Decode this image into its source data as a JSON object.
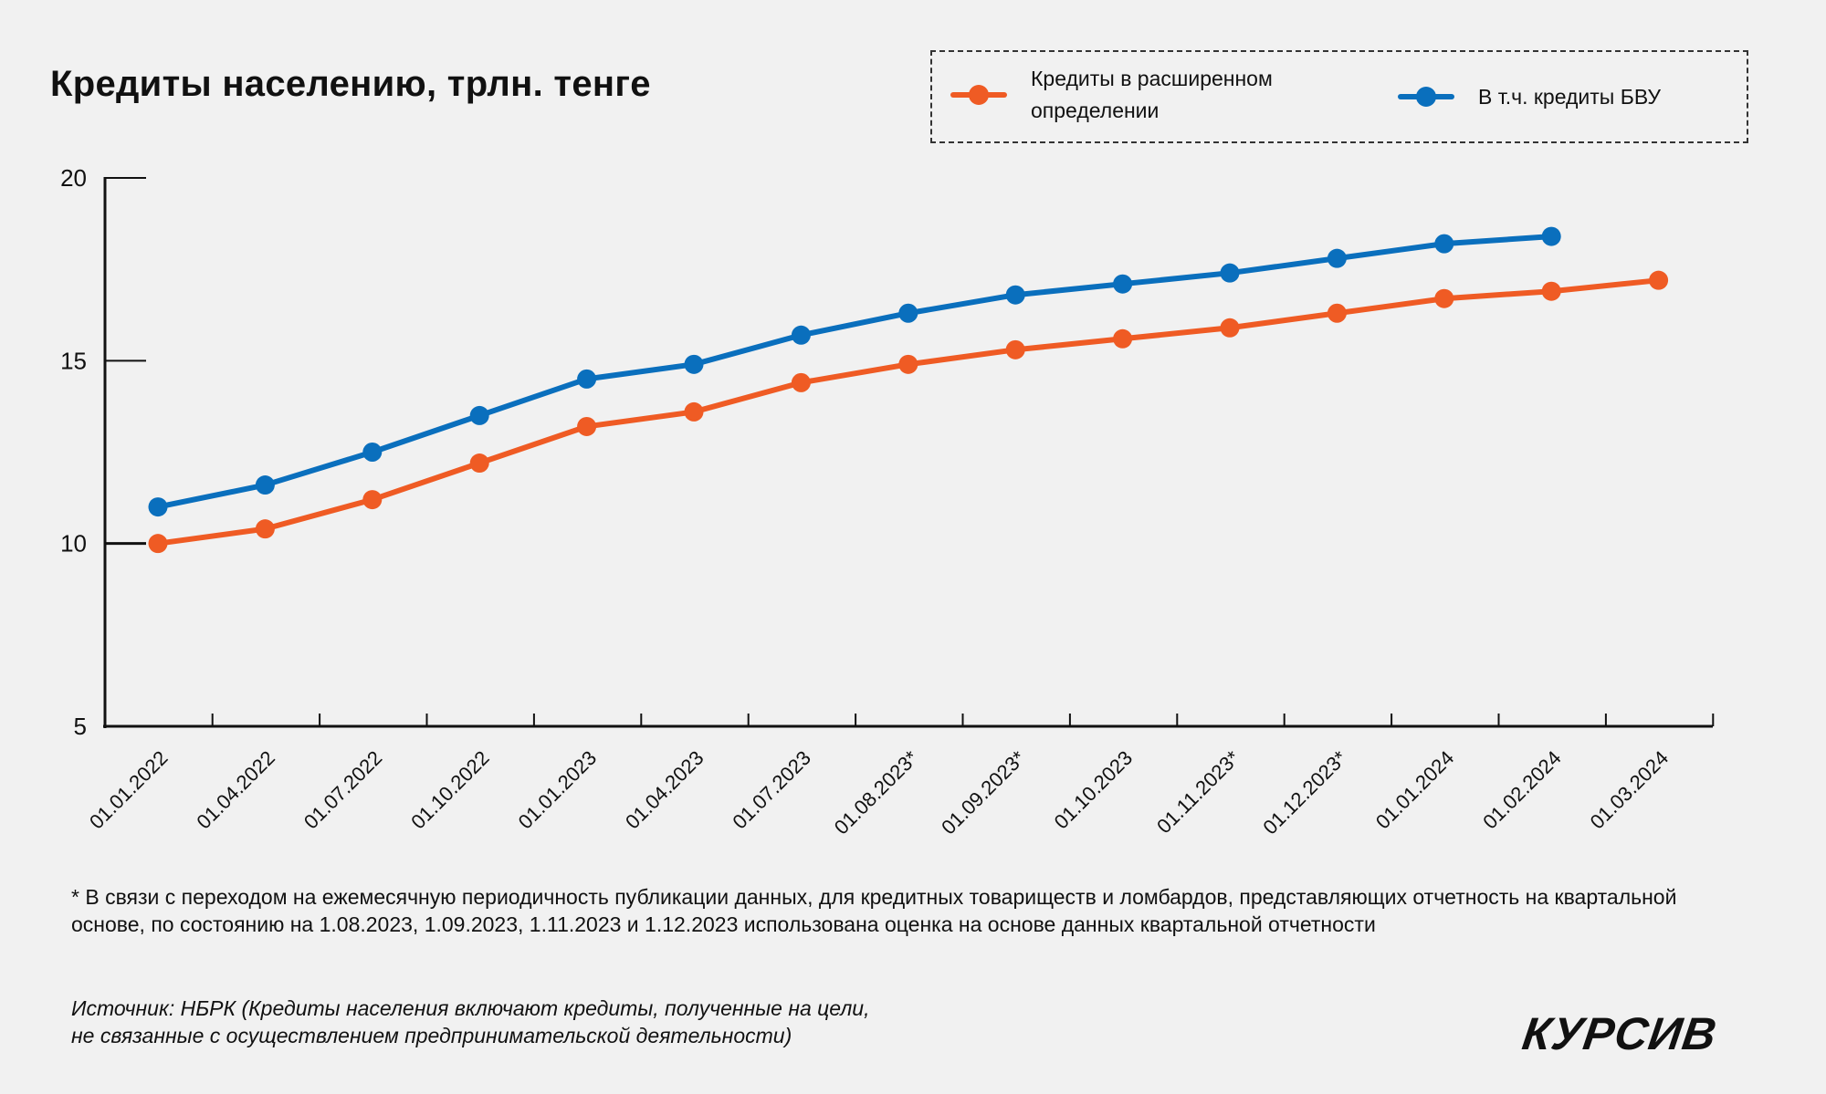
{
  "colors": {
    "extended": "#ef5b24",
    "bvu": "#0a6fbd",
    "background": "#f1f1f1",
    "axis": "#111111"
  },
  "chart_data": {
    "type": "line",
    "title": "Кредиты населению, трлн. тенге",
    "xlabel": "",
    "ylabel": "",
    "ylim": [
      5,
      20
    ],
    "yticks": [
      5,
      10,
      15,
      20
    ],
    "grid": false,
    "legend_position": "top-right",
    "categories": [
      "01.01.2022",
      "01.04.2022",
      "01.07.2022",
      "01.10.2022",
      "01.01.2023",
      "01.04.2023",
      "01.07.2023",
      "01.08.2023*",
      "01.09.2023*",
      "01.10.2023",
      "01.11.2023*",
      "01.12.2023*",
      "01.01.2024",
      "01.02.2024",
      "01.03.2024"
    ],
    "series": [
      {
        "name": "Кредиты в расширенном определении",
        "color": "#ef5b24",
        "values": [
          10.0,
          10.4,
          11.2,
          12.2,
          13.2,
          13.6,
          14.4,
          14.9,
          15.3,
          15.6,
          15.9,
          16.3,
          16.7,
          16.9,
          17.2
        ]
      },
      {
        "name": "В т.ч. кредиты БВУ",
        "color": "#0a6fbd",
        "values": [
          11.0,
          11.6,
          12.5,
          13.5,
          14.5,
          14.9,
          15.7,
          16.3,
          16.8,
          17.1,
          17.4,
          17.8,
          18.2,
          18.4,
          null
        ]
      }
    ]
  },
  "legend": {
    "extended_line1": "Кредиты в расширенном",
    "extended_line2": "определении",
    "bvu": "В т.ч. кредиты БВУ"
  },
  "footnote": "* В связи с переходом на ежемесячную периодичность публикации данных, для кредитных товариществ и ломбардов, представляющих отчетность на квартальной основе, по состоянию на 1.08.2023, 1.09.2023, 1.11.2023 и 1.12.2023 использована оценка на основе данных квартальной отчетности",
  "source": {
    "line1": "Источник: НБРК (Кредиты населения включают кредиты, полученные на цели,",
    "line2": "не связанные с осуществлением предпринимательской деятельности)"
  },
  "logo": "КУРСИВ"
}
